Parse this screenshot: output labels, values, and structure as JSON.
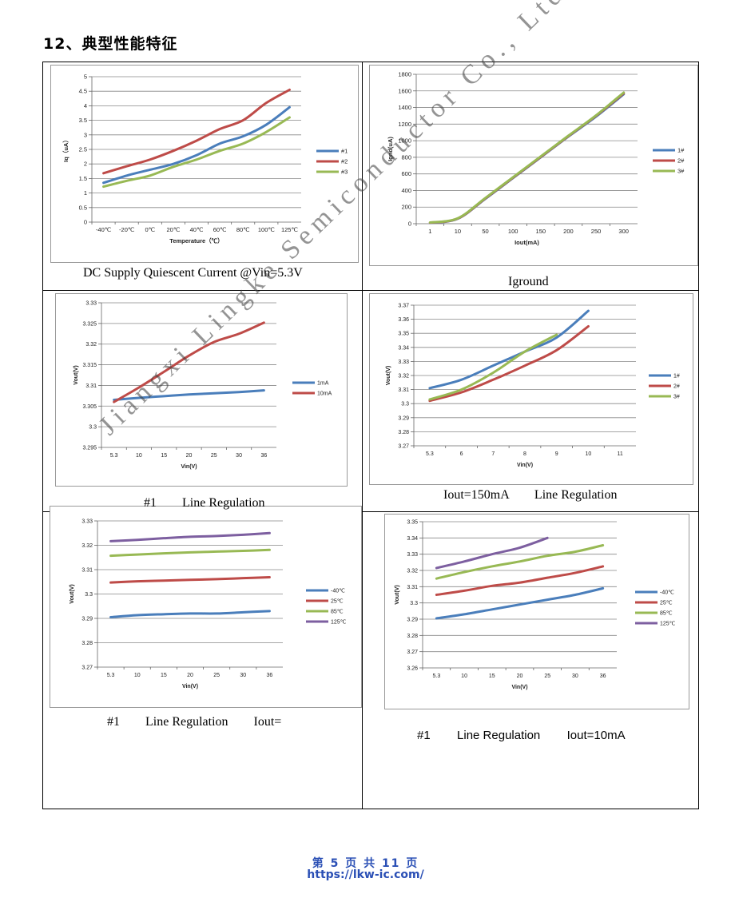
{
  "section_title": "12、典型性能特征",
  "watermark": "Jiangxi Lingke Semiconductor Co., Ltd",
  "footer": {
    "page": "第 5 页 共 11 页",
    "url": "https://lkw-ic.com/"
  },
  "captions": [
    "DC Supply Quiescent Current @Vin=5.3V",
    "Iground",
    "#1        Line Regulation",
    "Iout=150mA        Line Regulation",
    "#1        Line Regulation        Iout=",
    "#1        Line Regulation        Iout=10mA"
  ],
  "colors": {
    "blue": "#4a7ebb",
    "red": "#be4b48",
    "green": "#98b954",
    "purple": "#7d5fa0",
    "grid": "#888888",
    "footer": "#2a4fb5"
  },
  "chart_data": [
    {
      "type": "line",
      "title": "",
      "xlabel": "Temperature（℃）",
      "ylabel": "Iq（uA）",
      "categories": [
        "-40℃",
        "-20℃",
        "0℃",
        "20℃",
        "40℃",
        "60℃",
        "80℃",
        "100℃",
        "125℃"
      ],
      "yticks": [
        "0",
        "0.5",
        "1",
        "1.5",
        "2",
        "2.5",
        "3",
        "3.5",
        "4",
        "4.5",
        "5"
      ],
      "ylim": [
        0,
        5
      ],
      "series": [
        {
          "name": "#1",
          "color": "blue",
          "values": [
            1.35,
            1.6,
            1.8,
            2.0,
            2.3,
            2.7,
            2.95,
            3.35,
            3.95
          ]
        },
        {
          "name": "#2",
          "color": "red",
          "values": [
            1.68,
            1.92,
            2.15,
            2.45,
            2.8,
            3.2,
            3.5,
            4.1,
            4.55
          ]
        },
        {
          "name": "#3",
          "color": "green",
          "values": [
            1.22,
            1.42,
            1.6,
            1.9,
            2.15,
            2.45,
            2.7,
            3.1,
            3.6
          ]
        }
      ]
    },
    {
      "type": "line",
      "title": "",
      "xlabel": "Iout(mA)",
      "ylabel": "Ignd(uA)",
      "categories": [
        "1",
        "10",
        "50",
        "100",
        "150",
        "200",
        "250",
        "300"
      ],
      "yticks": [
        "0",
        "200",
        "400",
        "600",
        "800",
        "1000",
        "1200",
        "1400",
        "1600",
        "1800"
      ],
      "ylim": [
        0,
        1800
      ],
      "series": [
        {
          "name": "1#",
          "color": "blue",
          "values": [
            10,
            60,
            300,
            550,
            800,
            1050,
            1290,
            1560
          ]
        },
        {
          "name": "2#",
          "color": "red",
          "values": [
            12,
            62,
            305,
            555,
            805,
            1055,
            1300,
            1570
          ]
        },
        {
          "name": "3#",
          "color": "green",
          "values": [
            15,
            65,
            310,
            560,
            810,
            1060,
            1305,
            1580
          ]
        }
      ]
    },
    {
      "type": "line",
      "title": "",
      "xlabel": "Vin(V)",
      "ylabel": "Vout(V)",
      "categories": [
        "5.3",
        "10",
        "15",
        "20",
        "25",
        "30",
        "36"
      ],
      "yticks": [
        "3.295",
        "3.3",
        "3.305",
        "3.31",
        "3.315",
        "3.32",
        "3.325",
        "3.33"
      ],
      "ylim": [
        3.295,
        3.33
      ],
      "series": [
        {
          "name": "1mA",
          "color": "blue",
          "values": [
            3.3065,
            3.307,
            3.3074,
            3.3078,
            3.3081,
            3.3084,
            3.3088
          ]
        },
        {
          "name": "10mA",
          "color": "red",
          "values": [
            3.306,
            3.3095,
            3.3133,
            3.3172,
            3.3205,
            3.3225,
            3.3252
          ]
        }
      ]
    },
    {
      "type": "line",
      "title": "",
      "xlabel": "Vin(V)",
      "ylabel": "Vout(V)",
      "categories": [
        "5.3",
        "6",
        "7",
        "8",
        "9",
        "10",
        "11"
      ],
      "yticks": [
        "3.27",
        "3.28",
        "3.29",
        "3.3",
        "3.31",
        "3.32",
        "3.33",
        "3.34",
        "3.35",
        "3.36",
        "3.37"
      ],
      "ylim": [
        3.27,
        3.37
      ],
      "series": [
        {
          "name": "1#",
          "color": "blue",
          "values": [
            3.311,
            3.317,
            3.327,
            3.337,
            3.347,
            3.366,
            null
          ]
        },
        {
          "name": "2#",
          "color": "red",
          "values": [
            3.302,
            3.308,
            3.317,
            3.327,
            3.338,
            3.355,
            null
          ]
        },
        {
          "name": "3#",
          "color": "green",
          "values": [
            3.303,
            3.31,
            3.322,
            3.337,
            3.349,
            null,
            null
          ]
        }
      ]
    },
    {
      "type": "line",
      "title": "",
      "xlabel": "Vin(V)",
      "ylabel": "Vout(V)",
      "categories": [
        "5.3",
        "10",
        "15",
        "20",
        "25",
        "30",
        "36"
      ],
      "yticks": [
        "3.27",
        "3.28",
        "3.29",
        "3.3",
        "3.31",
        "3.32",
        "3.33"
      ],
      "ylim": [
        3.27,
        3.33
      ],
      "series": [
        {
          "name": "-40℃",
          "color": "blue",
          "values": [
            3.2905,
            3.2913,
            3.2917,
            3.292,
            3.292,
            3.2925,
            3.293
          ]
        },
        {
          "name": "25℃",
          "color": "red",
          "values": [
            3.3047,
            3.3052,
            3.3055,
            3.3058,
            3.3061,
            3.3065,
            3.3069
          ]
        },
        {
          "name": "85℃",
          "color": "green",
          "values": [
            3.3157,
            3.3162,
            3.3167,
            3.3171,
            3.3174,
            3.3177,
            3.3181
          ]
        },
        {
          "name": "125℃",
          "color": "purple",
          "values": [
            3.3217,
            3.3222,
            3.3229,
            3.3235,
            3.3238,
            3.3243,
            3.325
          ]
        }
      ]
    },
    {
      "type": "line",
      "title": "",
      "xlabel": "Vin(V)",
      "ylabel": "Vout(V)",
      "categories": [
        "5.3",
        "10",
        "15",
        "20",
        "25",
        "30",
        "36"
      ],
      "yticks": [
        "3.26",
        "3.27",
        "3.28",
        "3.29",
        "3.3",
        "3.31",
        "3.32",
        "3.33",
        "3.34",
        "3.35"
      ],
      "ylim": [
        3.26,
        3.35
      ],
      "series": [
        {
          "name": "-40℃",
          "color": "blue",
          "values": [
            3.2905,
            3.293,
            3.296,
            3.299,
            3.302,
            3.305,
            3.309
          ]
        },
        {
          "name": "25℃",
          "color": "red",
          "values": [
            3.305,
            3.3075,
            3.3105,
            3.3125,
            3.3155,
            3.3185,
            3.3225
          ]
        },
        {
          "name": "85℃",
          "color": "green",
          "values": [
            3.315,
            3.319,
            3.3225,
            3.3255,
            3.329,
            3.3315,
            3.3355
          ]
        },
        {
          "name": "125℃",
          "color": "purple",
          "values": [
            3.3215,
            3.3255,
            3.33,
            3.334,
            3.34,
            null,
            null
          ]
        }
      ]
    }
  ]
}
